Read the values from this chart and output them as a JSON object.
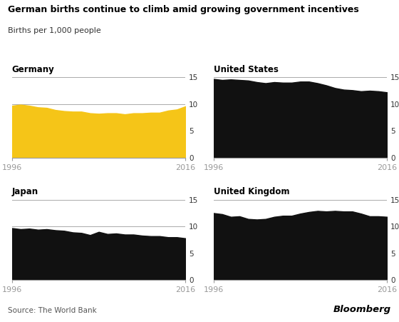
{
  "title": "German births continue to climb amid growing government incentives",
  "subtitle": "Births per 1,000 people",
  "source": "Source: The World Bank",
  "brand": "Bloomberg",
  "background_color": "#ffffff",
  "years": [
    1996,
    1997,
    1998,
    1999,
    2000,
    2001,
    2002,
    2003,
    2004,
    2005,
    2006,
    2007,
    2008,
    2009,
    2010,
    2011,
    2012,
    2013,
    2014,
    2015,
    2016
  ],
  "germany": [
    9.7,
    9.9,
    9.7,
    9.4,
    9.3,
    8.9,
    8.7,
    8.6,
    8.6,
    8.3,
    8.2,
    8.3,
    8.3,
    8.1,
    8.3,
    8.3,
    8.4,
    8.4,
    8.8,
    9.0,
    9.6
  ],
  "united_states": [
    14.7,
    14.5,
    14.6,
    14.5,
    14.4,
    14.1,
    13.9,
    14.1,
    14.0,
    14.0,
    14.2,
    14.2,
    13.9,
    13.5,
    13.0,
    12.7,
    12.6,
    12.4,
    12.5,
    12.4,
    12.2
  ],
  "japan": [
    9.7,
    9.5,
    9.6,
    9.4,
    9.5,
    9.3,
    9.2,
    8.9,
    8.8,
    8.4,
    9.0,
    8.6,
    8.7,
    8.5,
    8.5,
    8.3,
    8.2,
    8.2,
    8.0,
    8.0,
    7.8
  ],
  "united_kingdom": [
    12.5,
    12.3,
    11.8,
    11.9,
    11.4,
    11.3,
    11.4,
    11.8,
    12.0,
    12.0,
    12.4,
    12.7,
    12.9,
    12.8,
    12.9,
    12.8,
    12.8,
    12.4,
    11.9,
    11.9,
    11.8
  ],
  "germany_color": "#F5C518",
  "black_color": "#111111",
  "ylim": [
    0,
    15
  ],
  "yticks": [
    0,
    5,
    10,
    15
  ],
  "xticks": [
    1996,
    2016
  ],
  "panel_names": [
    "Germany",
    "United States",
    "Japan",
    "United Kingdom"
  ]
}
